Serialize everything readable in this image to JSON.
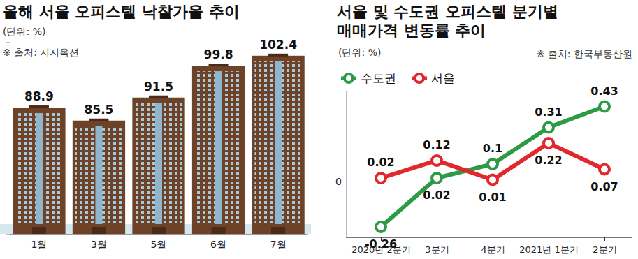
{
  "chart_data": [
    {
      "type": "bar",
      "title": "올해 서울 오피스텔 낙찰가율 추이",
      "subtitle": "(단위: %)",
      "source": "※ 출처: 지지옥션",
      "categories": [
        "1월",
        "3월",
        "5월",
        "6월",
        "7월"
      ],
      "values": [
        88.9,
        85.5,
        91.5,
        99.8,
        102.4
      ],
      "color": "#6e4227",
      "ylim": [
        56,
        106
      ],
      "yticks": [],
      "data_labels": true,
      "tick_labels": "x",
      "grid": false
    },
    {
      "type": "line",
      "title": [
        "서울 및 수도권 오피스텔 분기별",
        "매매가격 변동률 추이"
      ],
      "subtitle": "(단위: %)",
      "source": "※ 출처: 한국부동산원",
      "categories": [
        "2020년 2분기",
        "3분기",
        "4분기",
        "2021년 1분기",
        "2분기"
      ],
      "series": [
        {
          "name": "수도권",
          "color": "#2e9a46",
          "values": [
            -0.26,
            0.02,
            0.1,
            0.31,
            0.43
          ]
        },
        {
          "name": "서울",
          "color": "#e0282e",
          "values": [
            0.02,
            0.12,
            0.01,
            0.22,
            0.07
          ]
        }
      ],
      "ylim": [
        -0.32,
        0.52
      ],
      "yticks": [
        0
      ],
      "grid": true,
      "legend": "upper left",
      "marker": "circle",
      "data_labels": true
    }
  ]
}
